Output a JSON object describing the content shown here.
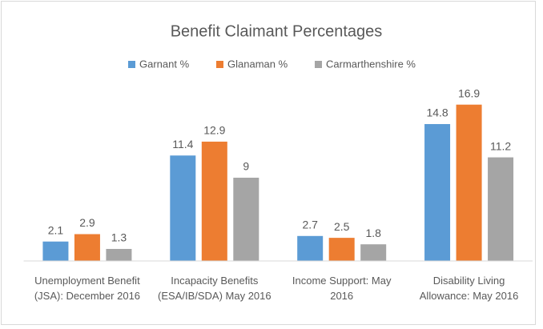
{
  "chart_data": {
    "type": "bar",
    "title": "Benefit Claimant Percentages",
    "categories": [
      "Unemployment Benefit (JSA): December 2016",
      "Incapacity Benefits (ESA/IB/SDA) May 2016",
      "Income Support: May 2016",
      "Disability Living Allowance: May 2016"
    ],
    "series": [
      {
        "name": "Garnant %",
        "color": "#5b9bd5",
        "values": [
          2.1,
          11.4,
          2.7,
          14.8
        ]
      },
      {
        "name": "Glanaman %",
        "color": "#ed7d31",
        "values": [
          2.9,
          12.9,
          2.5,
          16.9
        ]
      },
      {
        "name": "Carmarthenshire %",
        "color": "#a5a5a5",
        "values": [
          1.3,
          9,
          1.8,
          11.2
        ]
      }
    ],
    "ylim": [
      0,
      18
    ],
    "legend": "top"
  }
}
